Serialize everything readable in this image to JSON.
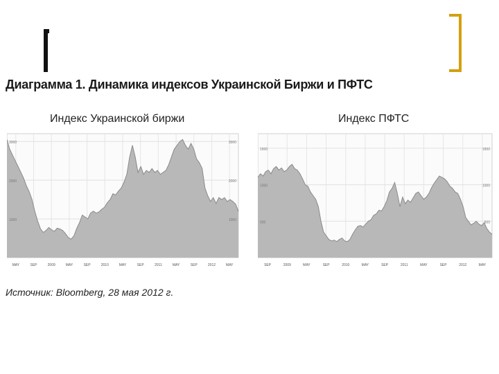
{
  "slide": {
    "title": "Диаграмма 1. Динамика индексов Украинской Биржи и ПФТС",
    "source": "Источник: Bloomberg, 28 мая 2012 г."
  },
  "chart_data": [
    {
      "type": "area",
      "title": "Индекс Украинской биржи",
      "x_labels": [
        "MAY",
        "SEP",
        "2009",
        "MAY",
        "SEP",
        "2010",
        "MAY",
        "SEP",
        "2011",
        "MAY",
        "SEP",
        "2012",
        "MAY"
      ],
      "y_ticks": [
        1000,
        2000,
        3000
      ],
      "ylim": [
        0,
        3200
      ],
      "grid": true,
      "fill_color": "#b8b8b8",
      "values": [
        3050,
        2800,
        2650,
        2500,
        2350,
        2200,
        2050,
        1850,
        1700,
        1500,
        1200,
        950,
        750,
        650,
        700,
        780,
        720,
        680,
        760,
        740,
        700,
        620,
        520,
        480,
        560,
        750,
        900,
        1100,
        1050,
        1000,
        1150,
        1200,
        1150,
        1180,
        1250,
        1300,
        1420,
        1500,
        1650,
        1620,
        1720,
        1800,
        1950,
        2150,
        2600,
        2900,
        2600,
        2200,
        2350,
        2150,
        2250,
        2200,
        2300,
        2200,
        2250,
        2150,
        2200,
        2250,
        2400,
        2600,
        2800,
        2900,
        3000,
        3050,
        2900,
        2800,
        2950,
        2800,
        2550,
        2450,
        2300,
        1800,
        1600,
        1450,
        1550,
        1400,
        1550,
        1500,
        1550,
        1450,
        1500,
        1450,
        1380,
        1200
      ]
    },
    {
      "type": "area",
      "title": "Индекс ПФТС",
      "x_labels": [
        "SEP",
        "2009",
        "MAY",
        "SEP",
        "2010",
        "MAY",
        "SEP",
        "2011",
        "MAY",
        "SEP",
        "2012",
        "MAY"
      ],
      "y_ticks": [
        500,
        1000,
        1500
      ],
      "ylim": [
        0,
        1700
      ],
      "grid": true,
      "fill_color": "#b8b8b8",
      "values": [
        1100,
        1150,
        1120,
        1180,
        1200,
        1150,
        1220,
        1250,
        1200,
        1230,
        1180,
        1200,
        1250,
        1280,
        1220,
        1200,
        1150,
        1080,
        1000,
        980,
        900,
        850,
        800,
        700,
        500,
        350,
        300,
        250,
        230,
        240,
        220,
        250,
        270,
        230,
        220,
        250,
        320,
        380,
        430,
        440,
        420,
        460,
        500,
        520,
        580,
        600,
        650,
        640,
        700,
        780,
        900,
        950,
        1030,
        880,
        700,
        830,
        740,
        790,
        760,
        820,
        880,
        900,
        850,
        800,
        830,
        880,
        960,
        1020,
        1070,
        1120,
        1100,
        1080,
        1040,
        980,
        950,
        900,
        880,
        800,
        700,
        550,
        500,
        450,
        470,
        500,
        460,
        440,
        480,
        400,
        350,
        320
      ]
    }
  ]
}
